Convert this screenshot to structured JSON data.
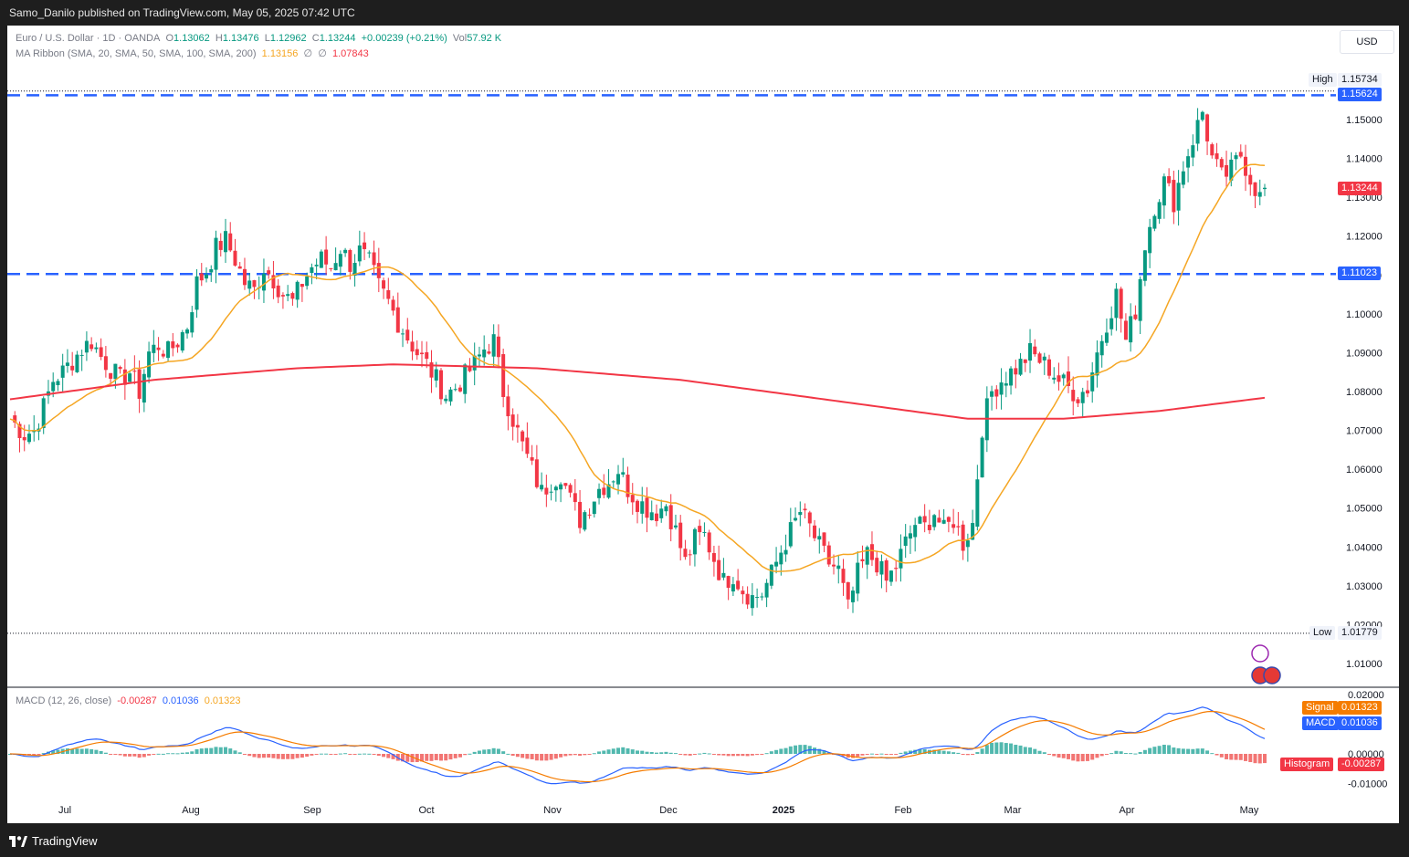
{
  "header": {
    "publisher": "Samo_Danilo published on TradingView.com, May 05, 2025 07:42 UTC"
  },
  "footer": {
    "brand": "TradingView"
  },
  "currency_button": "USD",
  "legend": {
    "symbol": "Euro / U.S. Dollar · 1D · OANDA",
    "o_label": "O",
    "o_value": "1.13062",
    "h_label": "H",
    "h_value": "1.13476",
    "l_label": "L",
    "l_value": "1.12962",
    "c_label": "C",
    "c_value": "1.13244",
    "change": "+0.00239 (+0.21%)",
    "vol_label": "Vol",
    "vol_value": "57.92 K",
    "ma_label": "MA Ribbon (SMA, 20, SMA, 50, SMA, 100, SMA, 200)",
    "ma_v1": "1.13156",
    "ma_empty1": "∅",
    "ma_empty2": "∅",
    "ma_v2": "1.07843"
  },
  "macd_legend": {
    "label": "MACD (12, 26, close)",
    "hist": "-0.00287",
    "macd": "0.01036",
    "signal": "0.01323"
  },
  "price_tags": {
    "high_label": "High",
    "high_value": "1.15734",
    "level_upper": "1.15624",
    "close": "1.13244",
    "level_lower": "1.11023",
    "low_label": "Low",
    "low_value": "1.01779"
  },
  "macd_tags": {
    "signal_label": "Signal",
    "signal_value": "0.01323",
    "macd_label": "MACD",
    "macd_value": "0.01036",
    "hist_label": "Histogram",
    "hist_value": "-0.00287"
  },
  "colors": {
    "up": "#089981",
    "down": "#f23645",
    "sma20": "#f5a623",
    "sma200": "#f23645",
    "level": "#2962ff",
    "macd": "#2962ff",
    "signal": "#f57c00"
  },
  "chart_data": {
    "type": "candlestick",
    "symbol": "EUR/USD",
    "timeframe": "1D",
    "y_axis": {
      "min": 1.01,
      "max": 1.15,
      "ticks": [
        "1.15000",
        "1.14000",
        "1.13000",
        "1.12000",
        "1.11000",
        "1.10000",
        "1.09000",
        "1.08000",
        "1.07000",
        "1.06000",
        "1.05000",
        "1.04000",
        "1.03000",
        "1.02000",
        "1.01000"
      ]
    },
    "x_ticks": [
      "Jul",
      "Aug",
      "Sep",
      "Oct",
      "Nov",
      "Dec",
      "2025",
      "Feb",
      "Mar",
      "Apr",
      "May"
    ],
    "horizontal_levels": [
      1.15624,
      1.11023
    ],
    "high": 1.15734,
    "low": 1.01779,
    "close_path": [
      [
        0,
        1.073
      ],
      [
        6,
        1.069
      ],
      [
        10,
        1.07
      ],
      [
        14,
        1.076
      ],
      [
        18,
        1.083
      ],
      [
        22,
        1.085
      ],
      [
        26,
        1.088
      ],
      [
        30,
        1.091
      ],
      [
        34,
        1.093
      ],
      [
        38,
        1.089
      ],
      [
        42,
        1.086
      ],
      [
        46,
        1.083
      ],
      [
        50,
        1.085
      ],
      [
        54,
        1.08
      ],
      [
        58,
        1.09
      ],
      [
        62,
        1.092
      ],
      [
        66,
        1.09
      ],
      [
        70,
        1.093
      ],
      [
        74,
        1.097
      ],
      [
        78,
        1.108
      ],
      [
        82,
        1.111
      ],
      [
        86,
        1.117
      ],
      [
        90,
        1.119
      ],
      [
        94,
        1.114
      ],
      [
        98,
        1.108
      ],
      [
        102,
        1.106
      ],
      [
        106,
        1.112
      ],
      [
        110,
        1.109
      ],
      [
        114,
        1.105
      ],
      [
        118,
        1.103
      ],
      [
        122,
        1.108
      ],
      [
        126,
        1.112
      ],
      [
        130,
        1.114
      ],
      [
        134,
        1.112
      ],
      [
        138,
        1.117
      ],
      [
        142,
        1.113
      ],
      [
        146,
        1.116
      ],
      [
        150,
        1.113
      ],
      [
        154,
        1.107
      ],
      [
        158,
        1.103
      ],
      [
        162,
        1.098
      ],
      [
        166,
        1.094
      ],
      [
        170,
        1.09
      ],
      [
        174,
        1.087
      ],
      [
        178,
        1.083
      ],
      [
        182,
        1.079
      ],
      [
        186,
        1.081
      ],
      [
        190,
        1.084
      ],
      [
        194,
        1.087
      ],
      [
        198,
        1.091
      ],
      [
        202,
        1.093
      ],
      [
        206,
        1.08
      ],
      [
        210,
        1.073
      ],
      [
        214,
        1.066
      ],
      [
        218,
        1.06
      ],
      [
        222,
        1.054
      ],
      [
        226,
        1.057
      ],
      [
        230,
        1.059
      ],
      [
        234,
        1.052
      ],
      [
        238,
        1.047
      ],
      [
        242,
        1.051
      ],
      [
        246,
        1.055
      ],
      [
        250,
        1.057
      ],
      [
        254,
        1.06
      ],
      [
        258,
        1.055
      ],
      [
        262,
        1.052
      ],
      [
        266,
        1.05
      ],
      [
        270,
        1.049
      ],
      [
        274,
        1.051
      ],
      [
        278,
        1.044
      ],
      [
        282,
        1.036
      ],
      [
        286,
        1.042
      ],
      [
        290,
        1.043
      ],
      [
        294,
        1.037
      ],
      [
        298,
        1.031
      ],
      [
        302,
        1.033
      ],
      [
        306,
        1.029
      ],
      [
        310,
        1.027
      ],
      [
        314,
        1.028
      ],
      [
        318,
        1.033
      ],
      [
        322,
        1.039
      ],
      [
        326,
        1.044
      ],
      [
        330,
        1.049
      ],
      [
        334,
        1.045
      ],
      [
        338,
        1.04
      ],
      [
        342,
        1.036
      ],
      [
        346,
        1.034
      ],
      [
        350,
        1.024
      ],
      [
        354,
        1.033
      ],
      [
        358,
        1.038
      ],
      [
        362,
        1.036
      ],
      [
        366,
        1.031
      ],
      [
        370,
        1.035
      ],
      [
        374,
        1.041
      ],
      [
        378,
        1.046
      ],
      [
        382,
        1.045
      ],
      [
        386,
        1.049
      ],
      [
        390,
        1.044
      ],
      [
        394,
        1.047
      ],
      [
        398,
        1.041
      ],
      [
        402,
        1.046
      ],
      [
        406,
        1.071
      ],
      [
        410,
        1.08
      ],
      [
        414,
        1.083
      ],
      [
        418,
        1.085
      ],
      [
        422,
        1.087
      ],
      [
        426,
        1.09
      ],
      [
        430,
        1.088
      ],
      [
        434,
        1.086
      ],
      [
        438,
        1.083
      ],
      [
        442,
        1.081
      ],
      [
        446,
        1.079
      ],
      [
        450,
        1.081
      ],
      [
        454,
        1.09
      ],
      [
        458,
        1.098
      ],
      [
        462,
        1.105
      ],
      [
        466,
        1.093
      ],
      [
        470,
        1.101
      ],
      [
        474,
        1.118
      ],
      [
        478,
        1.128
      ],
      [
        482,
        1.134
      ],
      [
        486,
        1.129
      ],
      [
        490,
        1.138
      ],
      [
        494,
        1.145
      ],
      [
        498,
        1.152
      ],
      [
        502,
        1.14
      ],
      [
        506,
        1.135
      ],
      [
        510,
        1.137
      ],
      [
        514,
        1.141
      ],
      [
        518,
        1.135
      ],
      [
        522,
        1.13
      ],
      [
        524,
        1.1324
      ]
    ]
  }
}
